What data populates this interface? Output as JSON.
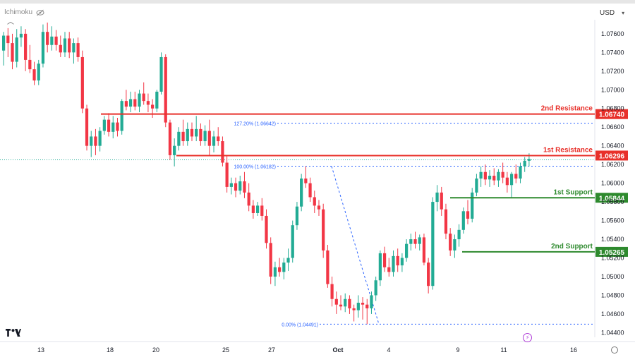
{
  "indicator": {
    "label": "Ichimoku"
  },
  "currency": {
    "label": "USD"
  },
  "colors": {
    "up": "#22ab94",
    "down": "#f23645",
    "resistance": "#e8302a",
    "support": "#2e8a2e",
    "fib": "#2962ff"
  },
  "icons": [
    "eye-off-icon",
    "chevron-down-icon",
    "collapse-icon",
    "tradingview-logo",
    "flash-icon",
    "settings-icon"
  ],
  "chart_data": {
    "type": "candlestick",
    "y_axis": {
      "min": 1.0435,
      "max": 1.0775,
      "ticks": [
        "1.07600",
        "1.07400",
        "1.07200",
        "1.07000",
        "1.06800",
        "1.06600",
        "1.06400",
        "1.06200",
        "1.06000",
        "1.05800",
        "1.05600",
        "1.05400",
        "1.05200",
        "1.05000",
        "1.04800",
        "1.04600",
        "1.04400"
      ]
    },
    "x_axis": {
      "ticks": [
        "13",
        "18",
        "20",
        "25",
        "27",
        "Oct",
        "4",
        "9",
        "11",
        "16"
      ]
    },
    "levels": [
      {
        "label": "2nd Resistance",
        "price": "1.06740",
        "value": 1.0674,
        "kind": "resistance"
      },
      {
        "label": "1st Resistance",
        "price": "1.06296",
        "value": 1.06296,
        "kind": "resistance"
      },
      {
        "label": "1st Support",
        "price": "1.05844",
        "value": 1.05844,
        "kind": "support"
      },
      {
        "label": "2nd Support",
        "price": "1.05265",
        "value": 1.05265,
        "kind": "support"
      }
    ],
    "fibs": [
      {
        "label": "127.20% (1.06642)",
        "value": 1.06642
      },
      {
        "label": "100.00% (1.06182)",
        "value": 1.06182
      },
      {
        "label": "0.00% (1.04491)",
        "value": 1.04491
      }
    ],
    "current_price": 1.0625,
    "candles": [
      [
        1.0742,
        1.0762,
        1.0726,
        1.0758
      ],
      [
        1.0758,
        1.0766,
        1.0735,
        1.075
      ],
      [
        1.075,
        1.076,
        1.0722,
        1.073
      ],
      [
        1.073,
        1.0765,
        1.0724,
        1.0756
      ],
      [
        1.0756,
        1.0768,
        1.0746,
        1.076
      ],
      [
        1.076,
        1.0765,
        1.072,
        1.0732
      ],
      [
        1.0732,
        1.0748,
        1.0718,
        1.0722
      ],
      [
        1.0722,
        1.073,
        1.0705,
        1.071
      ],
      [
        1.071,
        1.0732,
        1.0705,
        1.0728
      ],
      [
        1.0728,
        1.077,
        1.0724,
        1.0762
      ],
      [
        1.0762,
        1.0772,
        1.074,
        1.0748
      ],
      [
        1.0748,
        1.0768,
        1.0742,
        1.0757
      ],
      [
        1.0757,
        1.0764,
        1.0742,
        1.0748
      ],
      [
        1.0748,
        1.0758,
        1.0735,
        1.074
      ],
      [
        1.074,
        1.0762,
        1.0735,
        1.0755
      ],
      [
        1.0755,
        1.0762,
        1.0734,
        1.074
      ],
      [
        1.074,
        1.0755,
        1.0728,
        1.075
      ],
      [
        1.075,
        1.0756,
        1.073,
        1.0735
      ],
      [
        1.0735,
        1.0742,
        1.0675,
        1.068
      ],
      [
        1.068,
        1.0684,
        1.0635,
        1.064
      ],
      [
        1.064,
        1.0656,
        1.0628,
        1.065
      ],
      [
        1.065,
        1.0658,
        1.063,
        1.064
      ],
      [
        1.064,
        1.066,
        1.0634,
        1.0656
      ],
      [
        1.0656,
        1.0672,
        1.0652,
        1.0668
      ],
      [
        1.0668,
        1.0675,
        1.065,
        1.0655
      ],
      [
        1.0655,
        1.0672,
        1.0648,
        1.0665
      ],
      [
        1.0665,
        1.067,
        1.065,
        1.0656
      ],
      [
        1.0656,
        1.069,
        1.0652,
        1.0688
      ],
      [
        1.0688,
        1.07,
        1.0678,
        1.0682
      ],
      [
        1.0682,
        1.0698,
        1.0676,
        1.069
      ],
      [
        1.069,
        1.0698,
        1.0678,
        1.0682
      ],
      [
        1.0682,
        1.07,
        1.0676,
        1.0696
      ],
      [
        1.0696,
        1.0708,
        1.0684,
        1.0688
      ],
      [
        1.0688,
        1.0696,
        1.0676,
        1.0684
      ],
      [
        1.0684,
        1.069,
        1.067,
        1.068
      ],
      [
        1.068,
        1.07,
        1.0676,
        1.0698
      ],
      [
        1.0698,
        1.074,
        1.0695,
        1.0735
      ],
      [
        1.0735,
        1.0738,
        1.066,
        1.0665
      ],
      [
        1.0665,
        1.0668,
        1.0625,
        1.063
      ],
      [
        1.063,
        1.0648,
        1.0618,
        1.064
      ],
      [
        1.064,
        1.066,
        1.0635,
        1.0655
      ],
      [
        1.0655,
        1.0668,
        1.064,
        1.0645
      ],
      [
        1.0645,
        1.0665,
        1.064,
        1.0658
      ],
      [
        1.0658,
        1.0665,
        1.0645,
        1.065
      ],
      [
        1.065,
        1.0672,
        1.0645,
        1.0658
      ],
      [
        1.0658,
        1.0664,
        1.064,
        1.0645
      ],
      [
        1.0645,
        1.0662,
        1.064,
        1.0656
      ],
      [
        1.0656,
        1.0668,
        1.063,
        1.064
      ],
      [
        1.064,
        1.0656,
        1.0633,
        1.065
      ],
      [
        1.065,
        1.066,
        1.064,
        1.0645
      ],
      [
        1.0645,
        1.065,
        1.0618,
        1.0622
      ],
      [
        1.0622,
        1.063,
        1.059,
        1.0596
      ],
      [
        1.0596,
        1.0606,
        1.0588,
        1.06
      ],
      [
        1.06,
        1.0606,
        1.0585,
        1.0592
      ],
      [
        1.0592,
        1.0608,
        1.0588,
        1.0602
      ],
      [
        1.0602,
        1.0612,
        1.0584,
        1.059
      ],
      [
        1.059,
        1.06,
        1.057,
        1.0576
      ],
      [
        1.0576,
        1.0582,
        1.0562,
        1.0568
      ],
      [
        1.0568,
        1.058,
        1.0565,
        1.0576
      ],
      [
        1.0576,
        1.0584,
        1.056,
        1.0565
      ],
      [
        1.0565,
        1.0572,
        1.053,
        1.0536
      ],
      [
        1.0536,
        1.0542,
        1.0492,
        1.05
      ],
      [
        1.05,
        1.0516,
        1.049,
        1.051
      ],
      [
        1.051,
        1.052,
        1.05,
        1.0505
      ],
      [
        1.0505,
        1.052,
        1.0497,
        1.0515
      ],
      [
        1.0515,
        1.053,
        1.0506,
        1.052
      ],
      [
        1.052,
        1.056,
        1.0515,
        1.0555
      ],
      [
        1.0555,
        1.058,
        1.055,
        1.0575
      ],
      [
        1.0575,
        1.061,
        1.057,
        1.0605
      ],
      [
        1.0605,
        1.0618,
        1.0595,
        1.06
      ],
      [
        1.06,
        1.0606,
        1.058,
        1.0585
      ],
      [
        1.0585,
        1.0592,
        1.0568,
        1.0576
      ],
      [
        1.0576,
        1.0582,
        1.0565,
        1.0572
      ],
      [
        1.0572,
        1.0578,
        1.052,
        1.0528
      ],
      [
        1.0528,
        1.0534,
        1.0488,
        1.0492
      ],
      [
        1.0492,
        1.05,
        1.0468,
        1.0476
      ],
      [
        1.0476,
        1.0484,
        1.046,
        1.047
      ],
      [
        1.047,
        1.048,
        1.0464,
        1.0468
      ],
      [
        1.0468,
        1.0482,
        1.0462,
        1.0476
      ],
      [
        1.0476,
        1.048,
        1.046,
        1.0466
      ],
      [
        1.0466,
        1.047,
        1.0452,
        1.0464
      ],
      [
        1.0464,
        1.048,
        1.0456,
        1.0472
      ],
      [
        1.0472,
        1.0478,
        1.0454,
        1.047
      ],
      [
        1.047,
        1.0476,
        1.0449,
        1.0466
      ],
      [
        1.0466,
        1.0484,
        1.046,
        1.048
      ],
      [
        1.048,
        1.05,
        1.0474,
        1.0496
      ],
      [
        1.0496,
        1.0528,
        1.049,
        1.0525
      ],
      [
        1.0525,
        1.0532,
        1.0505,
        1.051
      ],
      [
        1.051,
        1.052,
        1.05,
        1.0505
      ],
      [
        1.0505,
        1.0528,
        1.05,
        1.0522
      ],
      [
        1.0522,
        1.053,
        1.0505,
        1.0512
      ],
      [
        1.0512,
        1.0525,
        1.0505,
        1.052
      ],
      [
        1.052,
        1.054,
        1.0516,
        1.0535
      ],
      [
        1.0535,
        1.0546,
        1.0528,
        1.054
      ],
      [
        1.054,
        1.0548,
        1.053,
        1.0535
      ],
      [
        1.0535,
        1.0545,
        1.0528,
        1.0542
      ],
      [
        1.0542,
        1.0546,
        1.0512,
        1.0515
      ],
      [
        1.0515,
        1.052,
        1.0482,
        1.049
      ],
      [
        1.049,
        1.0585,
        1.0486,
        1.058
      ],
      [
        1.058,
        1.0598,
        1.057,
        1.059
      ],
      [
        1.059,
        1.0596,
        1.0565,
        1.0572
      ],
      [
        1.0572,
        1.0578,
        1.054,
        1.0546
      ],
      [
        1.0546,
        1.0552,
        1.0522,
        1.0528
      ],
      [
        1.0528,
        1.0545,
        1.052,
        1.054
      ],
      [
        1.054,
        1.0556,
        1.0532,
        1.055
      ],
      [
        1.055,
        1.0574,
        1.0546,
        1.057
      ],
      [
        1.057,
        1.0582,
        1.0556,
        1.0562
      ],
      [
        1.0562,
        1.0595,
        1.0558,
        1.059
      ],
      [
        1.059,
        1.061,
        1.0586,
        1.0605
      ],
      [
        1.0605,
        1.0618,
        1.0596,
        1.0612
      ],
      [
        1.0612,
        1.062,
        1.0598,
        1.0604
      ],
      [
        1.0604,
        1.0614,
        1.0596,
        1.0608
      ],
      [
        1.0608,
        1.0616,
        1.0598,
        1.0603
      ],
      [
        1.0603,
        1.0615,
        1.0596,
        1.0612
      ],
      [
        1.0612,
        1.0622,
        1.06,
        1.0606
      ],
      [
        1.0606,
        1.0612,
        1.059,
        1.0598
      ],
      [
        1.0598,
        1.0612,
        1.0585,
        1.061
      ],
      [
        1.061,
        1.062,
        1.06,
        1.0605
      ],
      [
        1.0605,
        1.0622,
        1.06,
        1.0618
      ],
      [
        1.0618,
        1.0628,
        1.0612,
        1.0624
      ],
      [
        1.0624,
        1.0632,
        1.0618,
        1.0626
      ]
    ]
  }
}
